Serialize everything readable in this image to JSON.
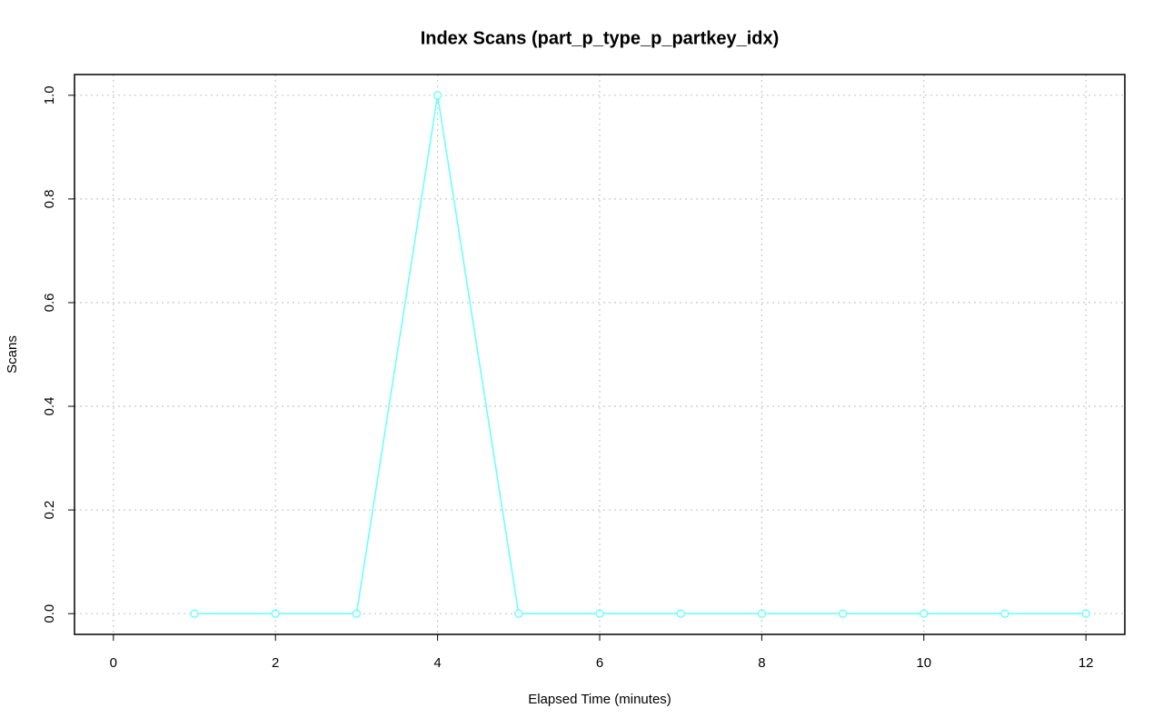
{
  "chart_data": {
    "type": "line",
    "title": "Index Scans (part_p_type_p_partkey_idx)",
    "x_label": "Elapsed Time (minutes)",
    "y_label": "Scans",
    "x": [
      1,
      2,
      3,
      4,
      5,
      6,
      7,
      8,
      9,
      10,
      11,
      12
    ],
    "series": [
      {
        "color": "#66ffff",
        "values": [
          0,
          0,
          0,
          1,
          0,
          0,
          0,
          0,
          0,
          0,
          0,
          0
        ]
      }
    ],
    "xlim": [
      -0.48,
      12.48
    ],
    "ylim": [
      -0.04,
      1.04
    ],
    "xticks": [
      0,
      2,
      4,
      6,
      8,
      10,
      12
    ],
    "yticks": [
      {
        "value": 0,
        "label": "0.0"
      },
      {
        "value": 0.2,
        "label": "0.2"
      },
      {
        "value": 0.4,
        "label": "0.4"
      },
      {
        "value": 0.6,
        "label": "0.6"
      },
      {
        "value": 0.8,
        "label": "0.8"
      },
      {
        "value": 1,
        "label": "1.0"
      }
    ],
    "grid": true
  }
}
